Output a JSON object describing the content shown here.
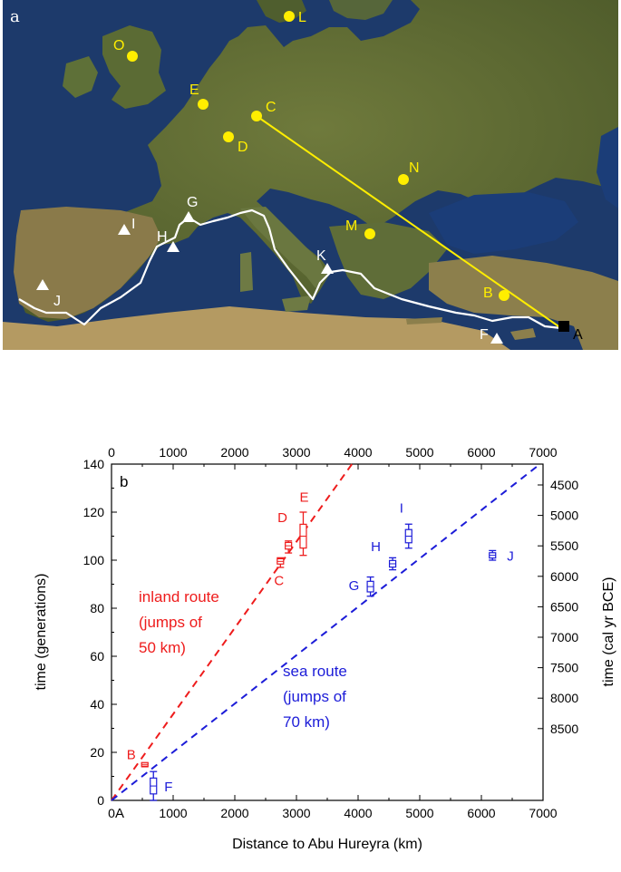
{
  "map": {
    "panel_label": "a",
    "colors": {
      "site": "#ffee00",
      "sea_site": "#ffffff",
      "origin": "#000000",
      "route": "#ffffff",
      "inland_line": "#ffee00"
    },
    "sites": [
      {
        "id": "L",
        "kind": "inland"
      },
      {
        "id": "O",
        "kind": "inland"
      },
      {
        "id": "E",
        "kind": "inland"
      },
      {
        "id": "C",
        "kind": "inland"
      },
      {
        "id": "D",
        "kind": "inland"
      },
      {
        "id": "N",
        "kind": "inland"
      },
      {
        "id": "M",
        "kind": "inland"
      },
      {
        "id": "B",
        "kind": "inland"
      },
      {
        "id": "G",
        "kind": "sea"
      },
      {
        "id": "I",
        "kind": "sea"
      },
      {
        "id": "H",
        "kind": "sea"
      },
      {
        "id": "K",
        "kind": "sea"
      },
      {
        "id": "J",
        "kind": "sea"
      },
      {
        "id": "F",
        "kind": "sea"
      },
      {
        "id": "A",
        "kind": "origin"
      }
    ]
  },
  "chart_data": {
    "type": "scatter",
    "panel_label": "b",
    "xlabel": "Distance to Abu Hureyra (km)",
    "ylabel": "time (generations)",
    "y2label": "time (cal yr BCE)",
    "xlim": [
      0,
      7000
    ],
    "ylim": [
      0,
      140
    ],
    "xticks": [
      0,
      1000,
      2000,
      3000,
      4000,
      5000,
      6000,
      7000
    ],
    "yticks": [
      0,
      20,
      40,
      60,
      80,
      100,
      120,
      140
    ],
    "y2ticks": [
      4500,
      5000,
      5500,
      6000,
      6500,
      7000,
      7500,
      8000,
      8500
    ],
    "origin_label": "A",
    "colors": {
      "inland": "#ee1c1c",
      "sea": "#1c1cd8"
    },
    "series": [
      {
        "name": "inland route",
        "color": "#ee1c1c",
        "line": {
          "x": [
            0,
            3900
          ],
          "y": [
            0,
            140
          ]
        },
        "points": [
          {
            "label": "B",
            "x": 540,
            "y": 15,
            "low": 14,
            "high": 15.5
          },
          {
            "label": "C",
            "x": 2740,
            "y": 99.5,
            "low": 97,
            "high": 101
          },
          {
            "label": "D",
            "x": 2870,
            "y": 106,
            "low": 103,
            "high": 108
          },
          {
            "label": "E",
            "x": 3110,
            "y": 110,
            "low": 102,
            "high": 120
          }
        ],
        "annotation": [
          "inland route",
          "(jumps of",
          "50 km)"
        ]
      },
      {
        "name": "sea route",
        "color": "#1c1cd8",
        "line": {
          "x": [
            0,
            7000
          ],
          "y": [
            0,
            141
          ]
        },
        "points": [
          {
            "label": "F",
            "x": 680,
            "y": 6,
            "low": 0,
            "high": 12
          },
          {
            "label": "G",
            "x": 4200,
            "y": 89,
            "low": 85,
            "high": 93
          },
          {
            "label": "H",
            "x": 4560,
            "y": 98.5,
            "low": 96,
            "high": 101
          },
          {
            "label": "I",
            "x": 4820,
            "y": 110,
            "low": 105,
            "high": 115
          },
          {
            "label": "J",
            "x": 6180,
            "y": 102,
            "low": 100,
            "high": 104
          }
        ],
        "annotation": [
          "sea route",
          "(jumps of",
          "70 km)"
        ]
      }
    ]
  }
}
